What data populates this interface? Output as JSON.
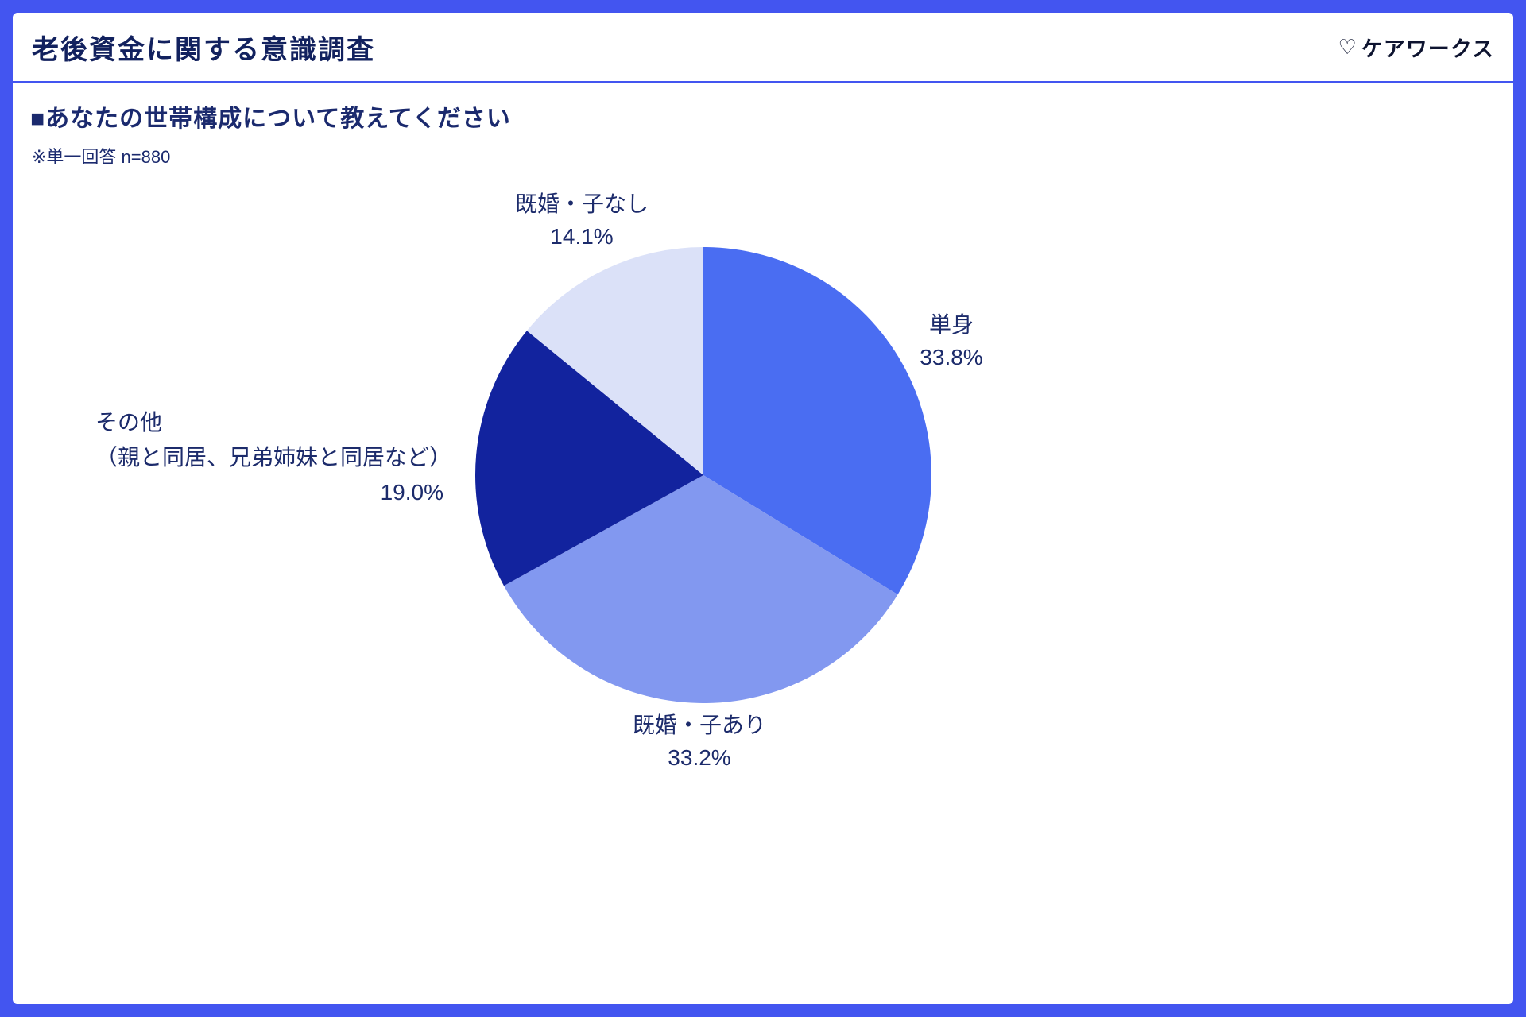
{
  "header": {
    "title": "老後資金に関する意識調査",
    "logo_icon": "♡",
    "logo_text": "ケアワークス"
  },
  "main": {
    "question": "■あなたの世帯構成について教えてください",
    "note": "※単一回答 n=880"
  },
  "colors": {
    "frame_blue": "#4355f0",
    "text_navy": "#1c2b6b",
    "title_navy": "#12215e"
  },
  "chart_data": {
    "type": "pie",
    "title": "あなたの世帯構成について教えてください",
    "note": "※単一回答 n=880",
    "n": 880,
    "unit": "%",
    "start_angle_deg": -90,
    "direction": "clockwise",
    "legend_position": "outside-labels",
    "slices": [
      {
        "label": "単身",
        "value": 33.8,
        "pct": "33.8%",
        "color": "#4a6df2"
      },
      {
        "label": "既婚・子あり",
        "value": 33.2,
        "pct": "33.2%",
        "color": "#8298f0"
      },
      {
        "label": "その他",
        "label2": "（親と同居、兄弟姉妹と同居など）",
        "value": 19.0,
        "pct": "19.0%",
        "color": "#12239e"
      },
      {
        "label": "既婚・子なし",
        "value": 14.1,
        "pct": "14.1%",
        "color": "#dbe1f8"
      }
    ]
  }
}
